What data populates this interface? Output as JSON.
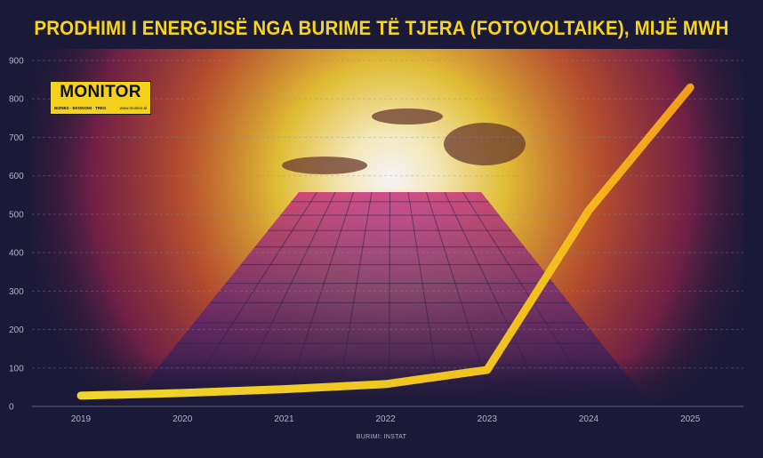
{
  "chart_data": {
    "type": "line",
    "title": "PRODHIMI I ENERGJISË NGA BURIME TË TJERA (FOTOVOLTAIKE), MIJË MWH",
    "x": [
      "2019",
      "2020",
      "2021",
      "2022",
      "2023",
      "2024",
      "2025"
    ],
    "series": [
      {
        "values": [
          28,
          35,
          45,
          58,
          95,
          510,
          830
        ]
      }
    ],
    "y_ticks": [
      "0",
      "100",
      "200",
      "300",
      "400",
      "500",
      "600",
      "700",
      "800",
      "900"
    ],
    "ylim": [
      0,
      900
    ],
    "grid": "horizontal dashed",
    "line_color": "#f7c51c",
    "title_color": "#f7d51c",
    "background_color": "#1b1938",
    "source": "BURIMI: INSTAT"
  },
  "logo": {
    "name": "MONITOR",
    "tagline": "BIZNES · EKONOMI · TREG",
    "url": "www.monitor.al"
  }
}
